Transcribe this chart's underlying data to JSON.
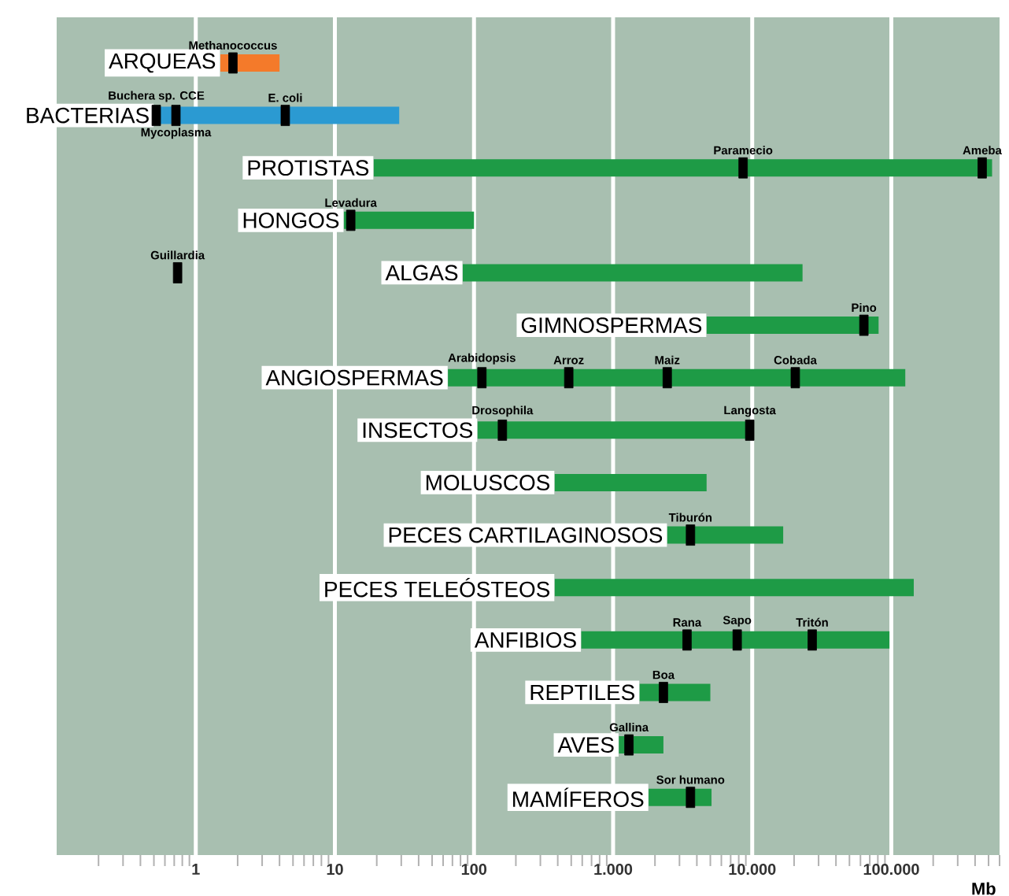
{
  "chart_data": {
    "type": "bar",
    "orientation": "horizontal",
    "log": "x",
    "grid": "x",
    "tick_labels": "x",
    "xlabel": "Mb",
    "categories": [
      "ARQUEAS",
      "BACTERIAS",
      "PROTISTAS",
      "HONGOS",
      "ALGAS",
      "GIMNOSPERMAS",
      "ANGIOSPERMAS",
      "INSECTOS",
      "MOLUSCOS",
      "PECES CARTILAGINOSOS",
      "PECES TELEÓSTEOS",
      "ANFIBIOS",
      "REPTILES",
      "AVES",
      "MAMÍFEROS"
    ],
    "series": [
      {
        "base": [
          1.5,
          0.5,
          19,
          11.6,
          83,
          4700,
          65,
          106,
          380,
          2450,
          380,
          590,
          1550,
          1100,
          1800
        ],
        "values": [
          2.5,
          28.5,
          529981,
          88.4,
          22917,
          76300,
          125935,
          9494,
          4320,
          14250,
          144620,
          96410,
          3450,
          1200,
          3300
        ],
        "colors": [
          "#f47a2a",
          "#2b9ad2",
          "#1e9b46",
          "#1e9b46",
          "#1e9b46",
          "#1e9b46",
          "#1e9b46",
          "#1e9b46",
          "#1e9b46",
          "#1e9b46",
          "#1e9b46",
          "#1e9b46",
          "#1e9b46",
          "#1e9b46",
          "#1e9b46"
        ]
      },
      {
        "type": "scatter",
        "color": "#000000",
        "x": [
          "ARQUEAS",
          "BACTERIAS",
          "BACTERIAS",
          "BACTERIAS",
          "PROTISTAS",
          "PROTISTAS",
          "HONGOS",
          "ALGAS",
          "GIMNOSPERMAS",
          "ANGIOSPERMAS",
          "ANGIOSPERMAS",
          "ANGIOSPERMAS",
          "ANGIOSPERMAS",
          "INSECTOS",
          "INSECTOS",
          "PECES CARTILAGINOSOS",
          "ANFIBIOS",
          "ANFIBIOS",
          "ANFIBIOS",
          "REPTILES",
          "AVES",
          "MAMÍFEROS"
        ],
        "values": [
          1.85,
          0.52,
          0.72,
          4.4,
          8600,
          450000,
          13,
          0.74,
          63500,
          114,
          480,
          2450,
          20400,
          160,
          9600,
          3600,
          3400,
          7800,
          27000,
          2300,
          1300,
          3600
        ],
        "value_labels": [
          "Methanococcus",
          "Buchera sp. CCE",
          "Mycoplasma",
          "E. coli",
          "Paramecio",
          "Ameba",
          "Levadura",
          "Guillardia",
          "Pino",
          "Arabidopsis",
          "Arroz",
          "Maiz",
          "Cobada",
          "Drosophila",
          "Langosta",
          "Tiburón",
          "Rana",
          "Sapo",
          "Tritón",
          "Boa",
          "Gallina",
          "Sor humano"
        ]
      }
    ],
    "xlim": [
      0.1,
      600000
    ],
    "xticks": [
      1,
      10,
      100,
      {
        "value": 1000,
        "label": "1.000"
      },
      {
        "value": 10000,
        "label": "10.000"
      },
      {
        "value": 100000,
        "label": "100.000"
      }
    ]
  }
}
